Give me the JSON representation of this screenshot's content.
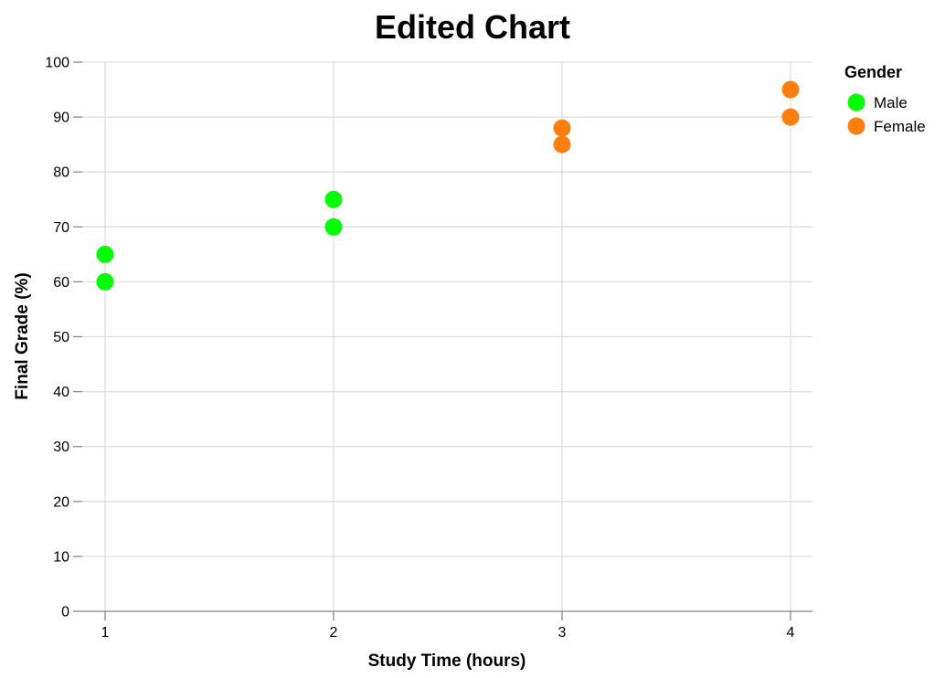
{
  "chart_data": {
    "type": "scatter",
    "title": "Edited Chart",
    "xlabel": "Study Time (hours)",
    "ylabel": "Final Grade (%)",
    "xlim": [
      1,
      4
    ],
    "ylim": [
      0,
      100
    ],
    "x_ticks": [
      "1",
      "2",
      "3",
      "4"
    ],
    "y_ticks": [
      "0",
      "10",
      "20",
      "30",
      "40",
      "50",
      "60",
      "70",
      "80",
      "90",
      "100"
    ],
    "grid": true,
    "legend": {
      "title": "Gender",
      "placement": "top-right",
      "entries": [
        {
          "label": "Male",
          "color": "#00ff00"
        },
        {
          "label": "Female",
          "color": "#ff7f0e"
        }
      ]
    },
    "series": [
      {
        "name": "Male",
        "color": "#00ff00",
        "points": [
          {
            "x": 1,
            "y": 60
          },
          {
            "x": 1,
            "y": 65
          },
          {
            "x": 2,
            "y": 70
          },
          {
            "x": 2,
            "y": 75
          }
        ]
      },
      {
        "name": "Female",
        "color": "#ff7f0e",
        "points": [
          {
            "x": 3,
            "y": 85
          },
          {
            "x": 3,
            "y": 88
          },
          {
            "x": 4,
            "y": 90
          },
          {
            "x": 4,
            "y": 95
          }
        ]
      }
    ]
  }
}
